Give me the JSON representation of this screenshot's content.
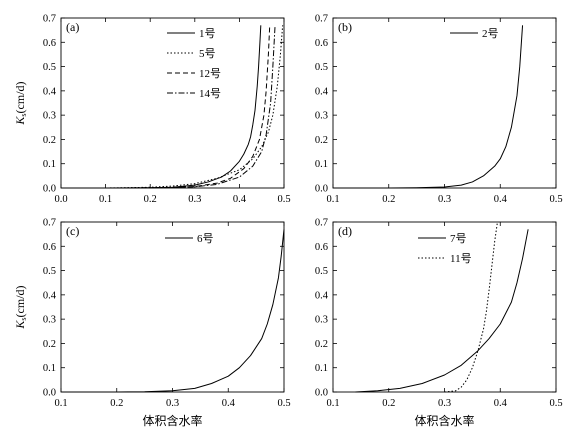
{
  "chart_data": [
    {
      "type": "line",
      "panel_label": "(a)",
      "ylabel_main": "K",
      "ylabel_sub": "s",
      "ylabel_rest": "(cm/d)",
      "xlabel": "",
      "xlim": [
        0.0,
        0.5
      ],
      "ylim": [
        0.0,
        0.7
      ],
      "xticks": [
        "0.0",
        "0.1",
        "0.2",
        "0.3",
        "0.4",
        "0.5"
      ],
      "yticks": [
        "0.0",
        "0.1",
        "0.2",
        "0.3",
        "0.4",
        "0.5",
        "0.6",
        "0.7"
      ],
      "legend_position": "top-right",
      "series": [
        {
          "name": "1号",
          "style": "solid",
          "x": [
            0.0,
            0.1,
            0.2,
            0.25,
            0.3,
            0.33,
            0.36,
            0.38,
            0.4,
            0.41,
            0.42,
            0.425,
            0.43,
            0.435,
            0.44,
            0.443,
            0.446,
            0.448
          ],
          "y": [
            0.0,
            0.0,
            0.001,
            0.003,
            0.012,
            0.025,
            0.045,
            0.07,
            0.11,
            0.14,
            0.18,
            0.21,
            0.26,
            0.32,
            0.42,
            0.5,
            0.6,
            0.67
          ]
        },
        {
          "name": "5号",
          "style": "dotted",
          "x": [
            0.0,
            0.1,
            0.2,
            0.25,
            0.3,
            0.35,
            0.4,
            0.43,
            0.45,
            0.465,
            0.475,
            0.485,
            0.492,
            0.497
          ],
          "y": [
            0.0,
            0.0,
            0.003,
            0.008,
            0.018,
            0.04,
            0.075,
            0.12,
            0.17,
            0.23,
            0.3,
            0.42,
            0.55,
            0.67
          ]
        },
        {
          "name": "12号",
          "style": "dashed",
          "x": [
            0.0,
            0.15,
            0.25,
            0.3,
            0.35,
            0.38,
            0.41,
            0.43,
            0.445,
            0.455,
            0.46,
            0.465,
            0.468
          ],
          "y": [
            0.0,
            0.0,
            0.002,
            0.006,
            0.02,
            0.04,
            0.08,
            0.13,
            0.2,
            0.3,
            0.4,
            0.55,
            0.67
          ]
        },
        {
          "name": "14号",
          "style": "dashdot",
          "x": [
            0.0,
            0.15,
            0.25,
            0.3,
            0.35,
            0.4,
            0.43,
            0.45,
            0.46,
            0.47,
            0.475,
            0.48
          ],
          "y": [
            0.0,
            0.0,
            0.002,
            0.005,
            0.015,
            0.045,
            0.09,
            0.15,
            0.22,
            0.35,
            0.5,
            0.67
          ]
        }
      ]
    },
    {
      "type": "line",
      "panel_label": "(b)",
      "xlabel": "",
      "xlim": [
        0.1,
        0.5
      ],
      "ylim": [
        0.0,
        0.7
      ],
      "xticks": [
        "0.1",
        "0.2",
        "0.3",
        "0.4",
        "0.5"
      ],
      "yticks": [
        "0.0",
        "0.1",
        "0.2",
        "0.3",
        "0.4",
        "0.5",
        "0.6",
        "0.7"
      ],
      "legend_position": "top-right",
      "series": [
        {
          "name": "2号",
          "style": "solid",
          "x": [
            0.1,
            0.2,
            0.25,
            0.3,
            0.33,
            0.35,
            0.37,
            0.39,
            0.4,
            0.41,
            0.42,
            0.43,
            0.435,
            0.44
          ],
          "y": [
            0.0,
            0.0,
            0.001,
            0.004,
            0.012,
            0.025,
            0.05,
            0.09,
            0.12,
            0.17,
            0.25,
            0.38,
            0.5,
            0.67
          ]
        }
      ]
    },
    {
      "type": "line",
      "panel_label": "(c)",
      "ylabel_main": "K",
      "ylabel_sub": "s",
      "ylabel_rest": "(cm/d)",
      "xlabel": "体积含水率",
      "xlim": [
        0.1,
        0.5
      ],
      "ylim": [
        0.0,
        0.7
      ],
      "xticks": [
        "0.1",
        "0.2",
        "0.3",
        "0.4",
        "0.5"
      ],
      "yticks": [
        "0.0",
        "0.1",
        "0.2",
        "0.3",
        "0.4",
        "0.5",
        "0.6",
        "0.7"
      ],
      "legend_position": "top-center",
      "series": [
        {
          "name": "6号",
          "style": "solid",
          "x": [
            0.1,
            0.2,
            0.25,
            0.3,
            0.34,
            0.37,
            0.4,
            0.42,
            0.44,
            0.46,
            0.47,
            0.48,
            0.49,
            0.495,
            0.5
          ],
          "y": [
            0.0,
            0.0,
            0.001,
            0.005,
            0.015,
            0.035,
            0.065,
            0.1,
            0.15,
            0.22,
            0.28,
            0.36,
            0.47,
            0.56,
            0.67
          ]
        }
      ]
    },
    {
      "type": "line",
      "panel_label": "(d)",
      "xlabel": "体积含水率",
      "xlim": [
        0.1,
        0.5
      ],
      "ylim": [
        0.0,
        0.7
      ],
      "xticks": [
        "0.1",
        "0.2",
        "0.3",
        "0.4",
        "0.5"
      ],
      "yticks": [
        "0.0",
        "0.1",
        "0.2",
        "0.3",
        "0.4",
        "0.5",
        "0.6",
        "0.7"
      ],
      "legend_position": "top-center",
      "series": [
        {
          "name": "7号",
          "style": "solid",
          "x": [
            0.14,
            0.18,
            0.22,
            0.26,
            0.3,
            0.33,
            0.36,
            0.38,
            0.4,
            0.42,
            0.43,
            0.44,
            0.45
          ],
          "y": [
            0.0,
            0.005,
            0.015,
            0.035,
            0.07,
            0.11,
            0.17,
            0.22,
            0.28,
            0.37,
            0.45,
            0.55,
            0.67
          ]
        },
        {
          "name": "11号",
          "style": "dotted",
          "x": [
            0.3,
            0.32,
            0.33,
            0.34,
            0.35,
            0.36,
            0.37,
            0.375,
            0.38,
            0.385,
            0.39,
            0.395
          ],
          "y": [
            0.0,
            0.005,
            0.02,
            0.05,
            0.1,
            0.17,
            0.26,
            0.33,
            0.42,
            0.52,
            0.62,
            0.7
          ]
        }
      ]
    }
  ]
}
